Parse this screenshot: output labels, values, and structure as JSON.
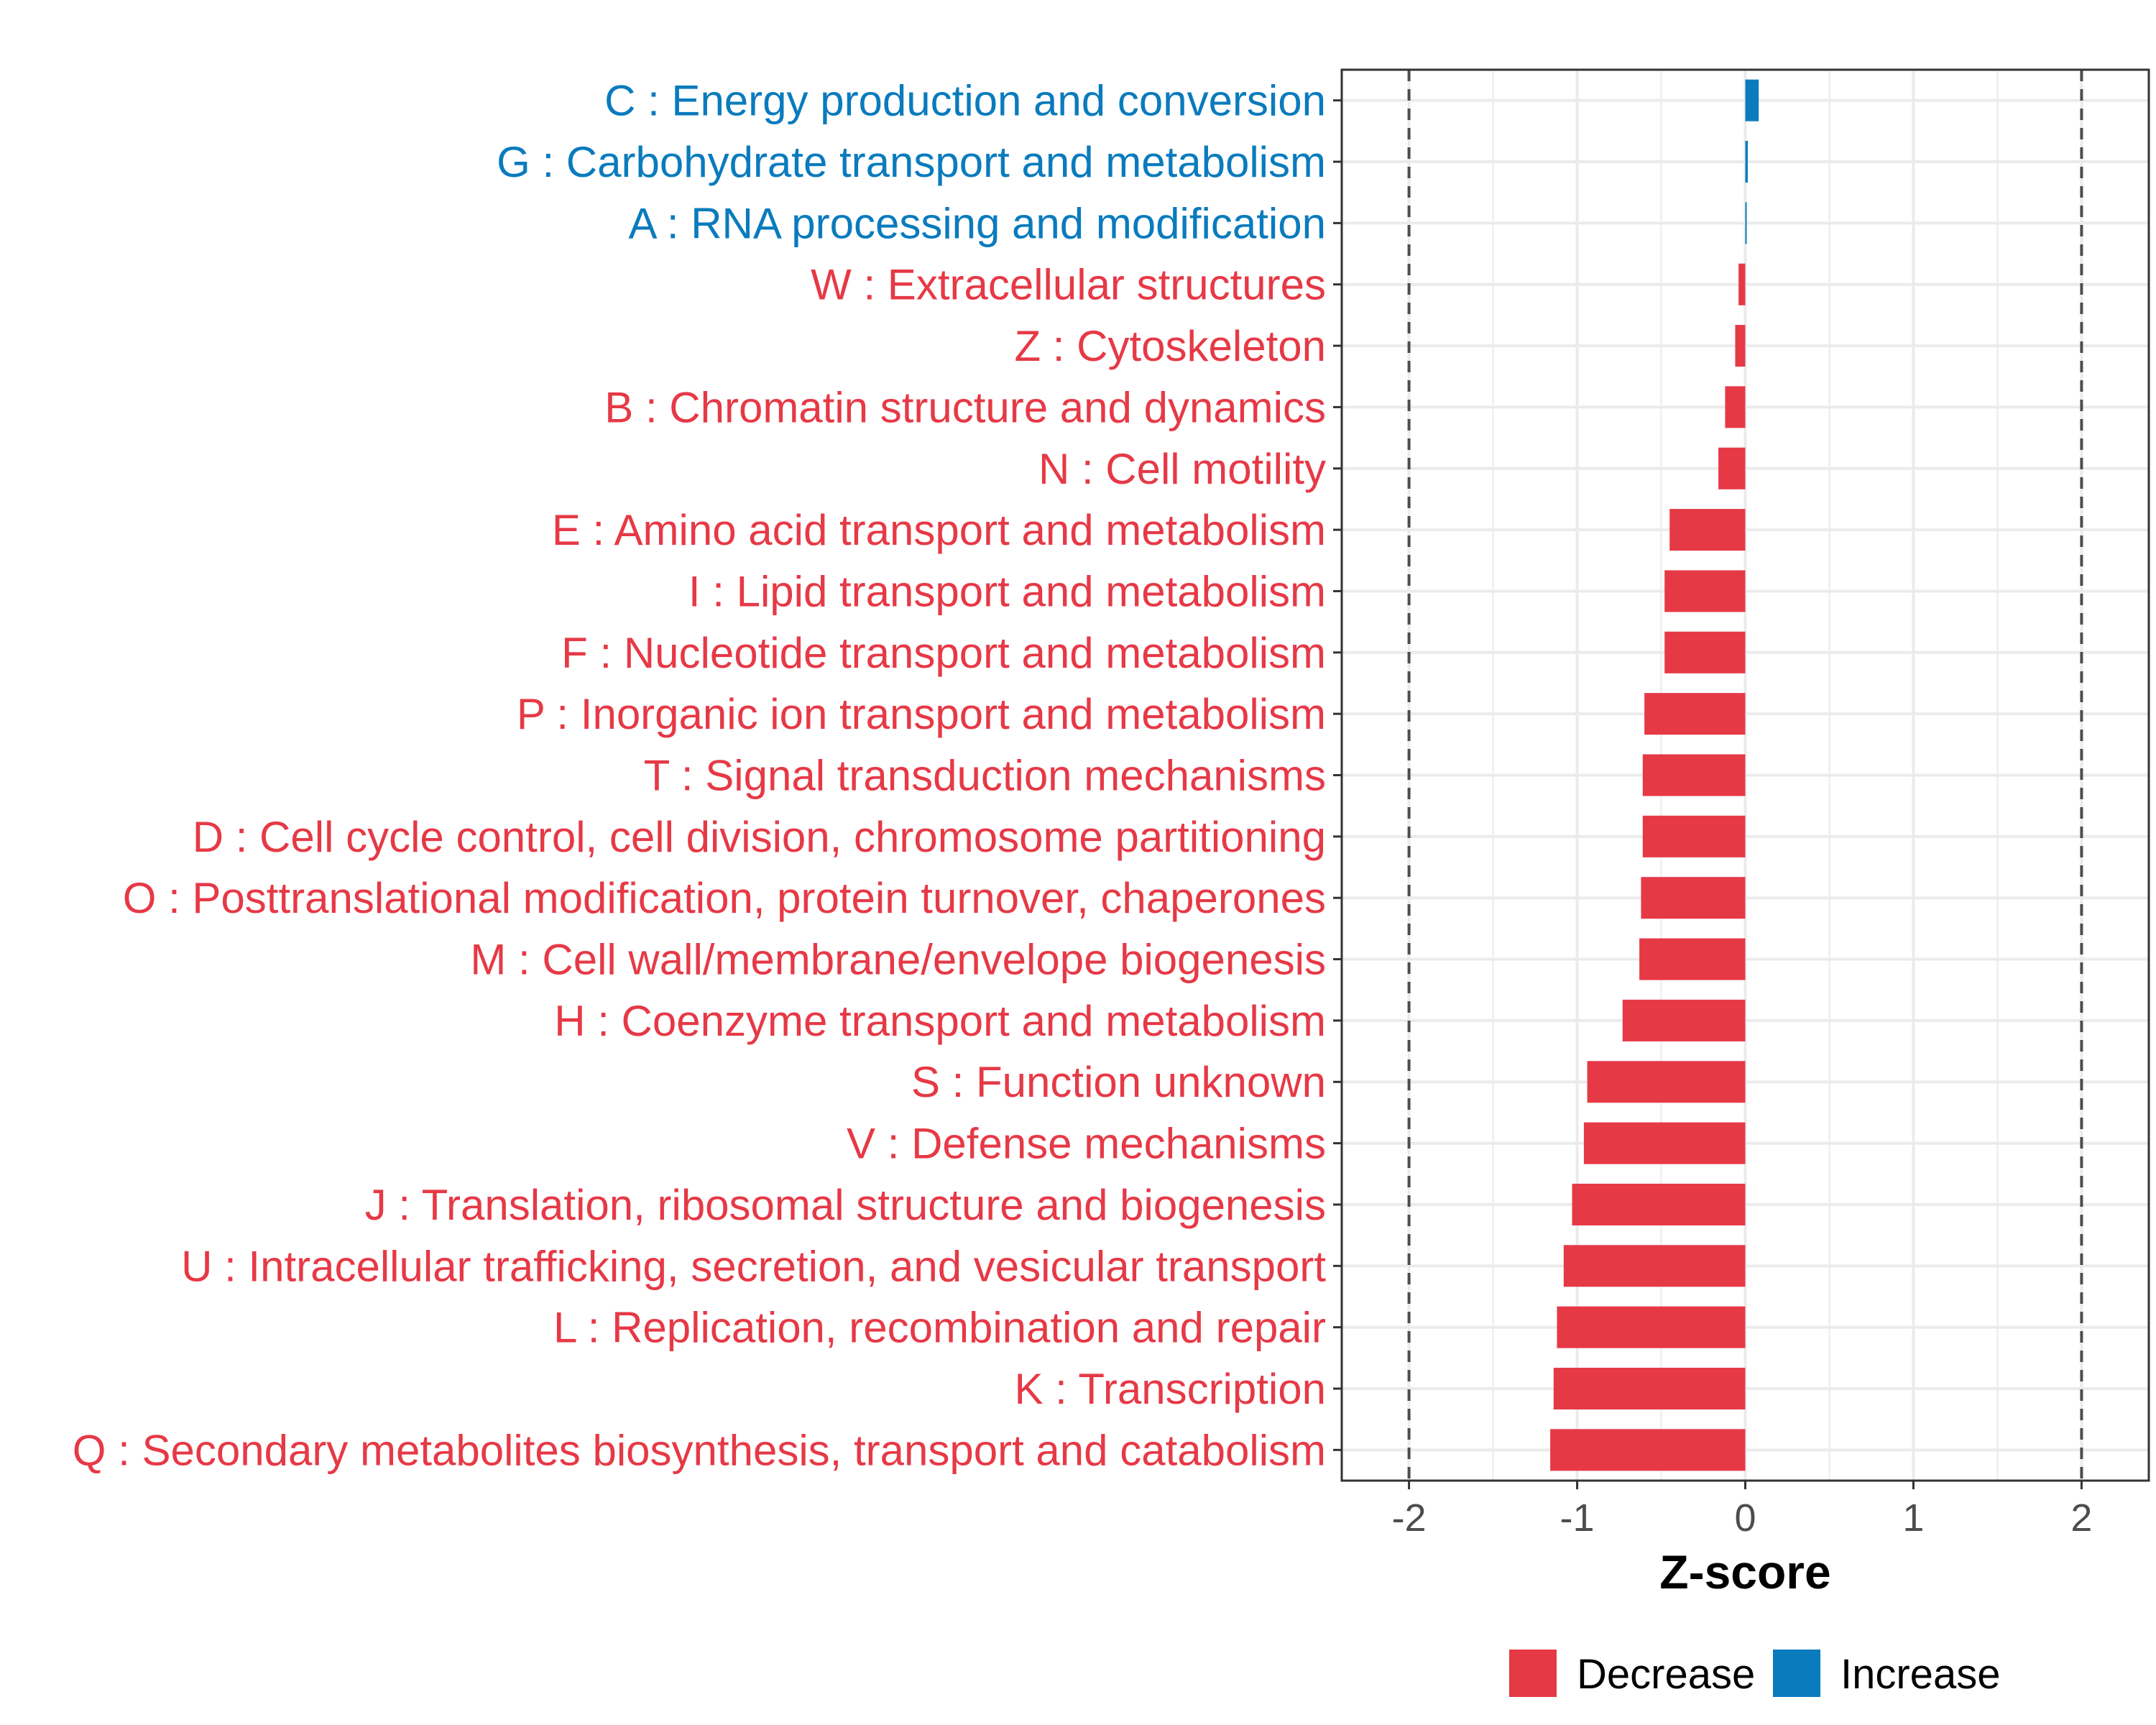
{
  "chart_data": {
    "type": "bar",
    "orientation": "horizontal",
    "xlabel": "Z-score",
    "xlim": [
      -2.4,
      2.4
    ],
    "xticks": [
      -2,
      -1,
      0,
      1,
      2
    ],
    "tick_labels": [
      "-2",
      "-1",
      "0",
      "1",
      "2"
    ],
    "reference_lines": [
      -2,
      2
    ],
    "grid": true,
    "legend_position": "bottom",
    "legend": [
      {
        "key": "decrease",
        "label": "Decrease",
        "color": "#e63946"
      },
      {
        "key": "increase",
        "label": "Increase",
        "color": "#0a7bbd"
      }
    ],
    "categories": [
      "C : Energy production and conversion",
      "G : Carbohydrate transport and metabolism",
      "A : RNA processing and modification",
      "W : Extracellular structures",
      "Z : Cytoskeleton",
      "B : Chromatin structure and dynamics",
      "N : Cell motility",
      "E : Amino acid transport and metabolism",
      "I : Lipid transport and metabolism",
      "F : Nucleotide transport and metabolism",
      "P : Inorganic ion transport and metabolism",
      "T : Signal transduction mechanisms",
      "D : Cell cycle control, cell division, chromosome partitioning",
      "O : Posttranslational modification, protein turnover, chaperones",
      "M : Cell wall/membrane/envelope biogenesis",
      "H : Coenzyme transport and metabolism",
      "S : Function unknown",
      "V : Defense mechanisms",
      "J : Translation, ribosomal structure and biogenesis",
      "U : Intracellular trafficking, secretion, and vesicular transport",
      "L : Replication, recombination and repair",
      "K : Transcription",
      "Q : Secondary metabolites biosynthesis, transport and catabolism"
    ],
    "values": [
      0.08,
      0.015,
      0.005,
      -0.04,
      -0.06,
      -0.12,
      -0.16,
      -0.45,
      -0.48,
      -0.48,
      -0.6,
      -0.61,
      -0.61,
      -0.62,
      -0.63,
      -0.73,
      -0.94,
      -0.96,
      -1.03,
      -1.08,
      -1.12,
      -1.14,
      -1.16
    ],
    "groups": [
      "increase",
      "increase",
      "increase",
      "decrease",
      "decrease",
      "decrease",
      "decrease",
      "decrease",
      "decrease",
      "decrease",
      "decrease",
      "decrease",
      "decrease",
      "decrease",
      "decrease",
      "decrease",
      "decrease",
      "decrease",
      "decrease",
      "decrease",
      "decrease",
      "decrease",
      "decrease"
    ]
  }
}
